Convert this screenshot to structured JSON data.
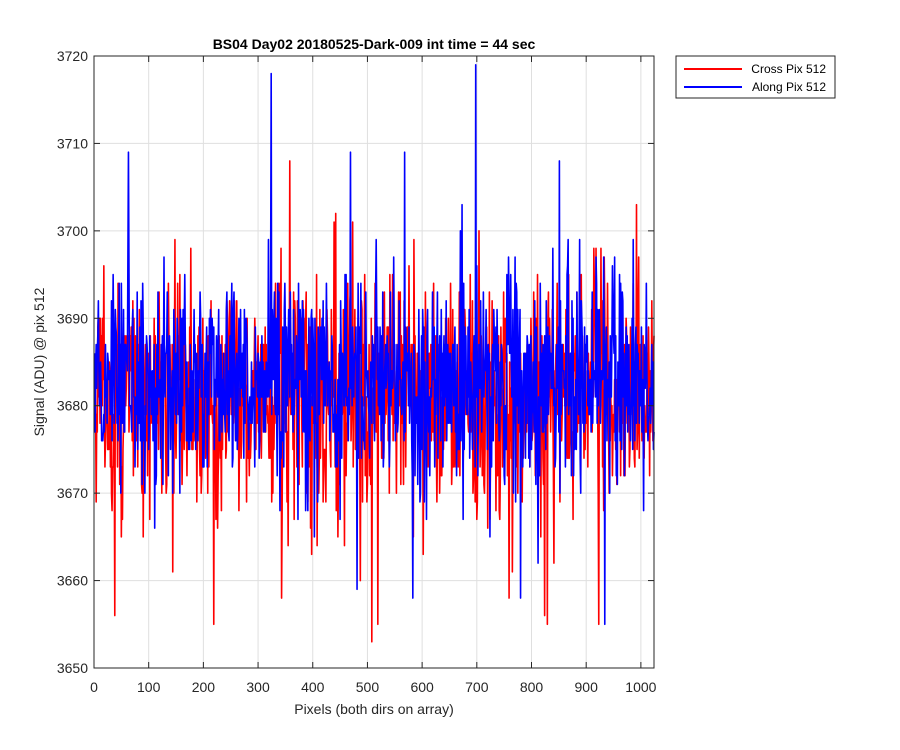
{
  "chart_data": {
    "type": "line",
    "title": "BS04 Day02 20180525-Dark-009 int time = 44 sec",
    "xlabel": "Pixels (both dirs on array)",
    "ylabel": "Signal (ADU) @ pix 512",
    "xlim": [
      0,
      1024
    ],
    "ylim": [
      3650,
      3720
    ],
    "xticks": [
      0,
      100,
      200,
      300,
      400,
      500,
      600,
      700,
      800,
      900,
      1000
    ],
    "yticks": [
      3650,
      3660,
      3670,
      3680,
      3690,
      3700,
      3710,
      3720
    ],
    "grid": true,
    "legend_position": "outside-top-right",
    "series": [
      {
        "name": "Cross Pix 512",
        "color": "#ff0000",
        "n_points": 1024,
        "mean": 3681,
        "std": 7,
        "min": 3653,
        "max": 3708,
        "notable_points": [
          [
            507,
            3653
          ],
          [
            218,
            3655
          ],
          [
            828,
            3655
          ],
          [
            922,
            3655
          ],
          [
            823,
            3656
          ],
          [
            37,
            3656
          ],
          [
            357,
            3656
          ],
          [
            357,
            3708
          ]
        ]
      },
      {
        "name": "Along Pix 512",
        "color": "#0000ff",
        "n_points": 1024,
        "mean": 3683,
        "std": 6,
        "min": 3655,
        "max": 3719,
        "notable_points": [
          [
            697,
            3719
          ],
          [
            323,
            3718
          ],
          [
            933,
            3655
          ],
          [
            779,
            3658
          ],
          [
            582,
            3658
          ],
          [
            480,
            3659
          ],
          [
            468,
            3709
          ],
          [
            567,
            3709
          ],
          [
            62,
            3709
          ],
          [
            850,
            3708
          ]
        ]
      }
    ]
  }
}
